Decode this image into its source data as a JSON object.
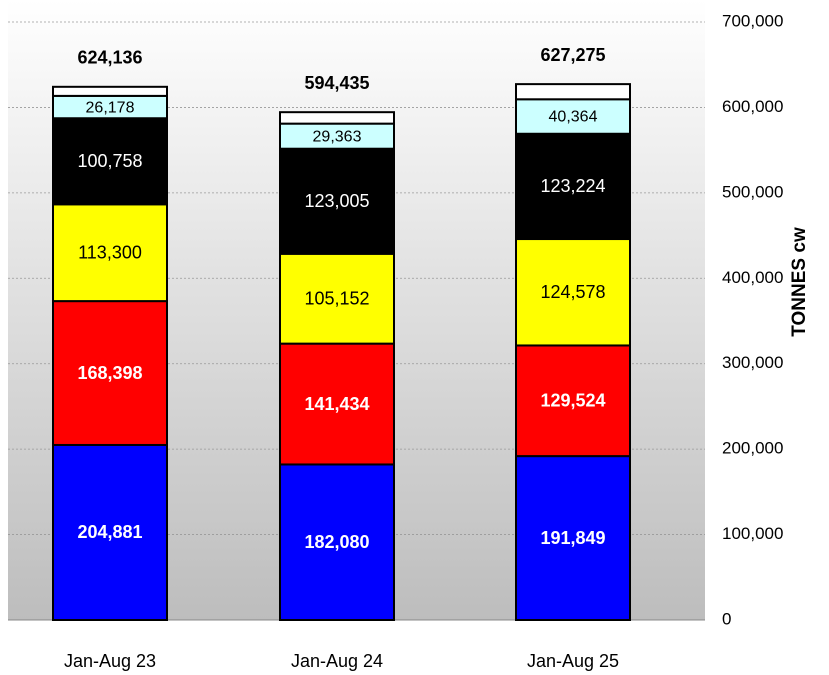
{
  "chart_data": {
    "type": "stacked_bar",
    "categories": [
      "Jan-Aug 23",
      "Jan-Aug 24",
      "Jan-Aug 25"
    ],
    "series": [
      {
        "color": "#0000ff",
        "label_color": "#ffffff",
        "label_weight": "bold",
        "values": [
          204881,
          182080,
          191849
        ],
        "value_labels": [
          "204,881",
          "182,080",
          "191,849"
        ]
      },
      {
        "color": "#ff0000",
        "label_color": "#ffffff",
        "label_weight": "bold",
        "values": [
          168398,
          141434,
          129524
        ],
        "value_labels": [
          "168,398",
          "141,434",
          "129,524"
        ]
      },
      {
        "color": "#ffff00",
        "label_color": "#000000",
        "label_weight": "normal",
        "values": [
          113300,
          105152,
          124578
        ],
        "value_labels": [
          "113,300",
          "105,152",
          "124,578"
        ]
      },
      {
        "color": "#000000",
        "label_color": "#ffffff",
        "label_weight": "normal",
        "values": [
          100758,
          123005,
          123224
        ],
        "value_labels": [
          "100,758",
          "123,005",
          "123,224"
        ]
      },
      {
        "color": "#ccffff",
        "label_color": "#000000",
        "label_weight": "normal",
        "values": [
          26178,
          29363,
          40364
        ],
        "value_labels": [
          "26,178",
          "29,363",
          "40,364"
        ]
      },
      {
        "color": "#ffffff",
        "values": [
          10621,
          13401,
          17736
        ]
      }
    ],
    "totals": {
      "values": [
        624136,
        594435,
        627275
      ],
      "value_labels": [
        "624,136",
        "594,435",
        "627,275"
      ]
    },
    "y_axis_label": "TONNES cw",
    "ylim": [
      0,
      700000
    ],
    "yticks": [
      0,
      {
        "value": 100000,
        "label": "100,000"
      },
      {
        "value": 200000,
        "label": "200,000"
      },
      {
        "value": 300000,
        "label": "300,000"
      },
      {
        "value": 400000,
        "label": "400,000"
      },
      {
        "value": 500000,
        "label": "500,000"
      },
      {
        "value": 600000,
        "label": "600,000"
      },
      {
        "value": 700000,
        "label": "700,000"
      }
    ],
    "grid": true
  }
}
